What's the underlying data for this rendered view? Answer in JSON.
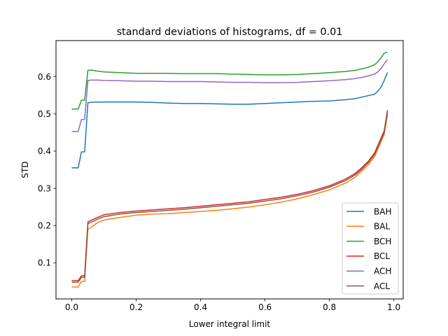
{
  "chart_data": {
    "type": "line",
    "title": "standard deviations of histograms, df = 0.01",
    "xlabel": "Lower integral limit",
    "ylabel": "STD",
    "xlim": [
      -0.049,
      1.029
    ],
    "ylim": [
      0.003,
      0.697
    ],
    "x_ticks": [
      "0.0",
      "0.2",
      "0.4",
      "0.6",
      "0.8",
      "1.0"
    ],
    "y_ticks": [
      "0.1",
      "0.2",
      "0.3",
      "0.4",
      "0.5",
      "0.6"
    ],
    "grid": false,
    "legend_position": "lower-right",
    "x": [
      0.0,
      0.02,
      0.03,
      0.04,
      0.05,
      0.06,
      0.08,
      0.1,
      0.15,
      0.2,
      0.25,
      0.3,
      0.35,
      0.4,
      0.45,
      0.5,
      0.55,
      0.6,
      0.65,
      0.7,
      0.75,
      0.8,
      0.85,
      0.88,
      0.9,
      0.92,
      0.94,
      0.95,
      0.96,
      0.97,
      0.98
    ],
    "series": [
      {
        "name": "BAH",
        "color": "#1f77b4",
        "values": [
          0.355,
          0.355,
          0.398,
          0.398,
          0.53,
          0.531,
          0.532,
          0.532,
          0.532,
          0.532,
          0.531,
          0.529,
          0.528,
          0.528,
          0.527,
          0.526,
          0.526,
          0.528,
          0.53,
          0.532,
          0.534,
          0.535,
          0.538,
          0.541,
          0.545,
          0.549,
          0.553,
          0.561,
          0.572,
          0.59,
          0.611
        ]
      },
      {
        "name": "BAL",
        "color": "#ff7f0e",
        "values": [
          0.035,
          0.035,
          0.05,
          0.05,
          0.19,
          0.195,
          0.208,
          0.215,
          0.222,
          0.228,
          0.231,
          0.232,
          0.235,
          0.238,
          0.241,
          0.245,
          0.25,
          0.256,
          0.263,
          0.272,
          0.283,
          0.296,
          0.314,
          0.33,
          0.346,
          0.362,
          0.385,
          0.405,
          0.425,
          0.445,
          0.498
        ]
      },
      {
        "name": "BCH",
        "color": "#2ca02c",
        "values": [
          0.513,
          0.513,
          0.537,
          0.537,
          0.617,
          0.618,
          0.615,
          0.613,
          0.611,
          0.609,
          0.609,
          0.609,
          0.608,
          0.608,
          0.608,
          0.607,
          0.606,
          0.605,
          0.605,
          0.606,
          0.608,
          0.611,
          0.614,
          0.617,
          0.621,
          0.625,
          0.632,
          0.64,
          0.651,
          0.663,
          0.666
        ]
      },
      {
        "name": "BCL",
        "color": "#d62728",
        "values": [
          0.052,
          0.052,
          0.065,
          0.065,
          0.21,
          0.214,
          0.222,
          0.229,
          0.235,
          0.239,
          0.242,
          0.245,
          0.248,
          0.252,
          0.256,
          0.26,
          0.264,
          0.27,
          0.276,
          0.284,
          0.294,
          0.307,
          0.325,
          0.34,
          0.355,
          0.372,
          0.395,
          0.415,
          0.435,
          0.455,
          0.51
        ]
      },
      {
        "name": "ACH",
        "color": "#9467bd",
        "values": [
          0.453,
          0.453,
          0.485,
          0.485,
          0.59,
          0.591,
          0.591,
          0.59,
          0.589,
          0.588,
          0.588,
          0.587,
          0.587,
          0.587,
          0.586,
          0.585,
          0.585,
          0.584,
          0.584,
          0.585,
          0.587,
          0.589,
          0.592,
          0.595,
          0.598,
          0.602,
          0.607,
          0.613,
          0.622,
          0.635,
          0.646
        ]
      },
      {
        "name": "ACL",
        "color": "#8c564b",
        "values": [
          0.048,
          0.048,
          0.061,
          0.061,
          0.205,
          0.209,
          0.217,
          0.224,
          0.231,
          0.235,
          0.238,
          0.241,
          0.244,
          0.248,
          0.252,
          0.256,
          0.26,
          0.266,
          0.272,
          0.28,
          0.29,
          0.303,
          0.321,
          0.336,
          0.351,
          0.368,
          0.391,
          0.411,
          0.431,
          0.451,
          0.505
        ]
      }
    ]
  }
}
